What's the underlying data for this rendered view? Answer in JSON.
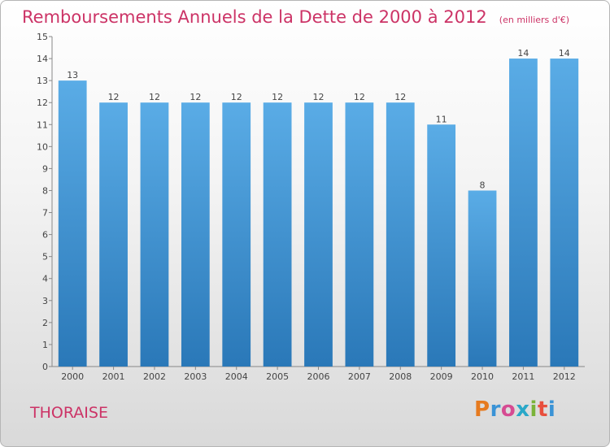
{
  "header": {
    "title": "Remboursements Annuels de la Dette de 2000 à 2012",
    "unit": "(en milliers d'€)"
  },
  "footer": {
    "commune": "THORAISE",
    "logo_letters": [
      "P",
      "r",
      "o",
      "x",
      "i",
      "t",
      "i"
    ]
  },
  "colors": {
    "title": "#cc3366",
    "bar_top": "#5aace6",
    "bar_bottom": "#2a78b8"
  },
  "chart_data": {
    "type": "bar",
    "title": "Remboursements Annuels de la Dette de 2000 à 2012",
    "unit": "(en milliers d'€)",
    "categories": [
      "2000",
      "2001",
      "2002",
      "2003",
      "2004",
      "2005",
      "2006",
      "2007",
      "2008",
      "2009",
      "2010",
      "2011",
      "2012"
    ],
    "values": [
      13,
      12,
      12,
      12,
      12,
      12,
      12,
      12,
      12,
      11,
      8,
      14,
      14
    ],
    "yticks": [
      "0",
      "1",
      "2",
      "3",
      "4",
      "5",
      "6",
      "7",
      "8",
      "9",
      "10",
      "11",
      "12",
      "13",
      "14",
      "15"
    ],
    "ylim": [
      0,
      15
    ],
    "grid": false
  }
}
